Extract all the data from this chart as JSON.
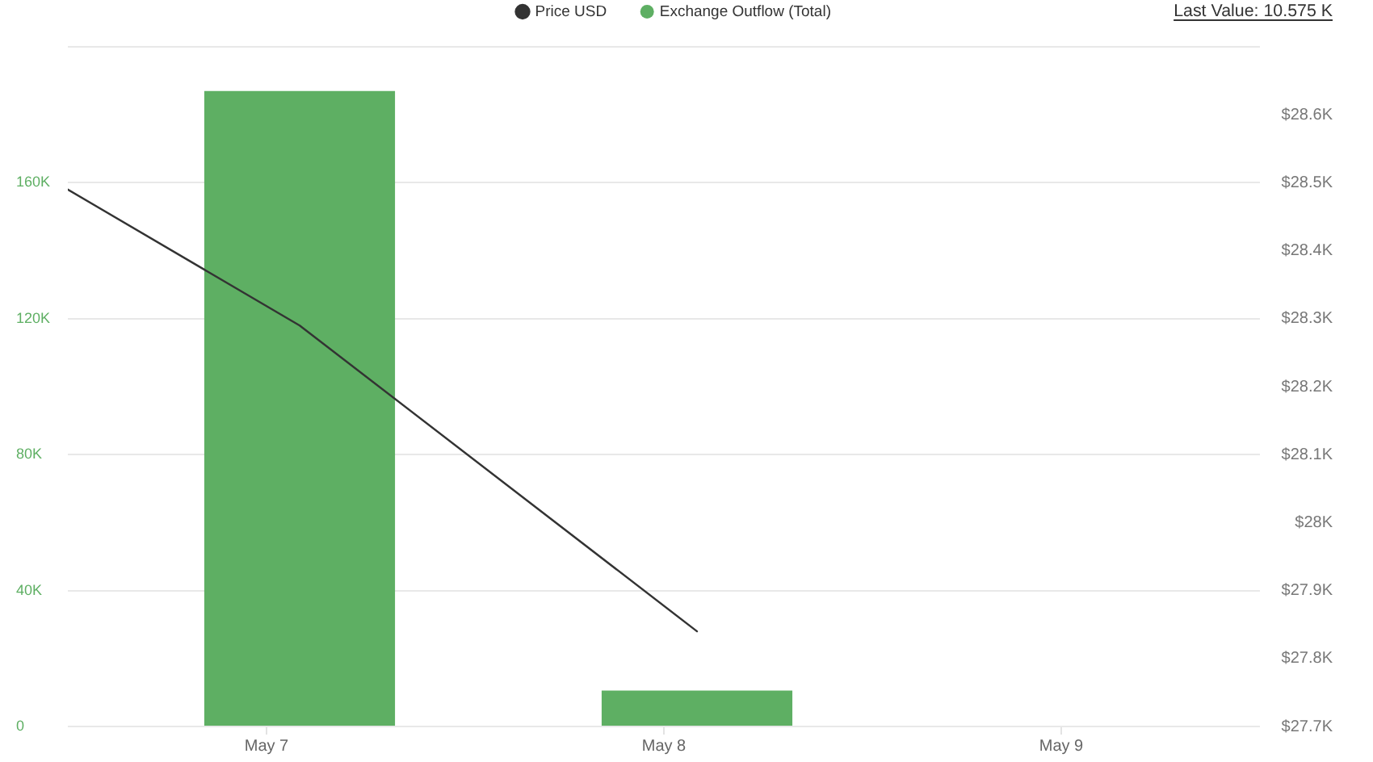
{
  "chart_data": {
    "type": "bar",
    "legend": "top",
    "annotations": [
      "Last Value: 10.575 K"
    ],
    "xlim": [
      "--05-06T12:00",
      "--05-09T12:00"
    ],
    "xticks": [
      {
        "value": "--05-07",
        "label": "May 7"
      },
      {
        "value": "--05-08",
        "label": "May 8"
      },
      {
        "value": "--05-09",
        "label": "May 9"
      }
    ],
    "ylim": [
      0,
      200000
    ],
    "yticks": [
      0,
      {
        "value": 40000,
        "label": "40K"
      },
      {
        "value": 80000,
        "label": "80K"
      },
      {
        "value": 120000,
        "label": "120K"
      },
      {
        "value": 160000,
        "label": "160K"
      },
      {
        "value": 200000,
        "label": null
      }
    ],
    "y2lim": [
      27700,
      28700
    ],
    "y2ticks": [
      {
        "value": 27700,
        "label": "$27.7K"
      },
      {
        "value": 27800,
        "label": "$27.8K"
      },
      {
        "value": 27900,
        "label": "$27.9K"
      },
      {
        "value": 28000,
        "label": "$28K"
      },
      {
        "value": 28100,
        "label": "$28.1K"
      },
      {
        "value": 28200,
        "label": "$28.2K"
      },
      {
        "value": 28300,
        "label": "$28.3K"
      },
      {
        "value": 28400,
        "label": "$28.4K"
      },
      {
        "value": 28500,
        "label": "$28.5K"
      },
      {
        "value": 28600,
        "label": "$28.6K"
      }
    ],
    "grid": "y",
    "series": [
      {
        "name": "Price USD",
        "type": "line",
        "axis": "y2",
        "color": "#333333",
        "x": [
          "--05-06T12:00",
          "--05-07T02:00",
          "--05-08T02:00"
        ],
        "values": [
          28490,
          28290,
          27840
        ]
      },
      {
        "name": "Exchange Outflow (Total)",
        "color": "#5eaf63",
        "x": [
          "--05-07T02:00",
          "--05-08T02:00"
        ],
        "values": [
          187000,
          10575
        ]
      }
    ]
  }
}
